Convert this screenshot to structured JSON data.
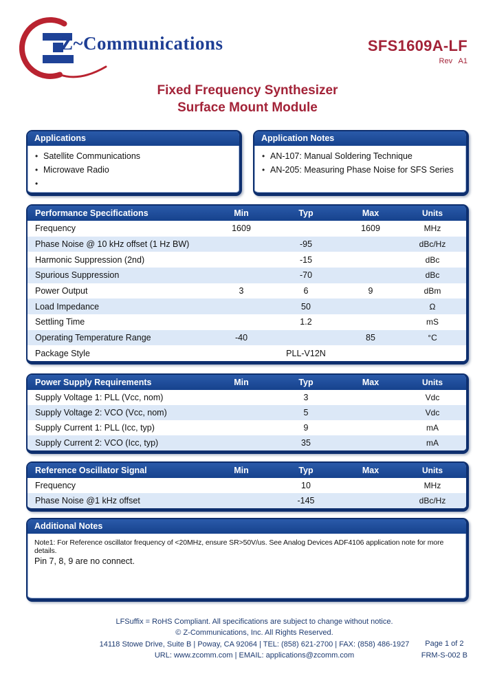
{
  "colors": {
    "navy_border": "#0e2f6e",
    "header_blue": "#1c4f9e",
    "alt_row_blue": "#dce8f7",
    "logo_red": "#b92330",
    "logo_blue": "#1e4297",
    "brand_blue": "#1e3e94",
    "title_red": "#a32338",
    "footer_navy": "#1d3a70"
  },
  "header": {
    "brand": "Z~Communications",
    "part_number": "SFS1609A-LF",
    "revision": "Rev A1"
  },
  "title": {
    "line1": "Fixed Frequency Synthesizer",
    "line2": "Surface Mount Module"
  },
  "applications": {
    "title": "Applications",
    "items": [
      "Satellite Communications",
      "Microwave Radio",
      ""
    ]
  },
  "application_notes": {
    "title": "Application Notes",
    "items": [
      "AN-107: Manual Soldering Technique",
      "AN-205: Measuring Phase Noise for SFS Series"
    ]
  },
  "tables": [
    {
      "title": "Performance Specifications",
      "columns": [
        "Min",
        "Typ",
        "Max",
        "Units"
      ],
      "rows": [
        {
          "name": "Frequency",
          "min": "1609",
          "typ": "",
          "max": "1609",
          "units": "MHz"
        },
        {
          "name": "Phase Noise @ 10 kHz offset (1 Hz BW)",
          "min": "",
          "typ": "-95",
          "max": "",
          "units": "dBc/Hz"
        },
        {
          "name": "Harmonic Suppression (2nd)",
          "min": "",
          "typ": "-15",
          "max": "",
          "units": "dBc"
        },
        {
          "name": "Spurious Suppression",
          "min": "",
          "typ": "-70",
          "max": "",
          "units": "dBc"
        },
        {
          "name": "Power Output",
          "min": "3",
          "typ": "6",
          "max": "9",
          "units": "dBm"
        },
        {
          "name": "Load Impedance",
          "min": "",
          "typ": "50",
          "max": "",
          "units": "Ω"
        },
        {
          "name": "Settling Time",
          "min": "",
          "typ": "1.2",
          "max": "",
          "units": "mS"
        },
        {
          "name": "Operating Temperature Range",
          "min": "-40",
          "typ": "",
          "max": "85",
          "units": "°C"
        },
        {
          "name": "Package Style",
          "min": "",
          "typ": "PLL-V12N",
          "max": "",
          "units": ""
        }
      ]
    },
    {
      "title": "Power Supply Requirements",
      "columns": [
        "Min",
        "Typ",
        "Max",
        "Units"
      ],
      "rows": [
        {
          "name": "Supply Voltage 1: PLL (Vcc, nom)",
          "min": "",
          "typ": "3",
          "max": "",
          "units": "Vdc"
        },
        {
          "name": "Supply Voltage 2: VCO (Vcc, nom)",
          "min": "",
          "typ": "5",
          "max": "",
          "units": "Vdc"
        },
        {
          "name": "Supply Current 1: PLL (Icc, typ)",
          "min": "",
          "typ": "9",
          "max": "",
          "units": "mA"
        },
        {
          "name": "Supply Current 2: VCO (Icc, typ)",
          "min": "",
          "typ": "35",
          "max": "",
          "units": "mA"
        }
      ]
    },
    {
      "title": "Reference Oscillator Signal",
      "columns": [
        "Min",
        "Typ",
        "Max",
        "Units"
      ],
      "rows": [
        {
          "name": "Frequency",
          "min": "",
          "typ": "10",
          "max": "",
          "units": "MHz"
        },
        {
          "name": "Phase Noise @1 kHz offset",
          "min": "",
          "typ": "-145",
          "max": "",
          "units": "dBc/Hz"
        }
      ]
    }
  ],
  "additional_notes": {
    "title": "Additional Notes",
    "lines": [
      "Note1: For Reference oscillator frequency of <20MHz, ensure SR>50V/us. See Analog Devices ADF4106 application note for more details.",
      "Pin 7, 8, 9 are no connect."
    ]
  },
  "footer": {
    "lines": [
      "LFSuffix = RoHS Compliant. All specifications are subject to change without notice.",
      "© Z-Communications, Inc. All Rights Reserved.",
      "14118 Stowe Drive, Suite B | Poway, CA 92064 | TEL: (858) 621-2700 | FAX: (858) 486-1927",
      "URL: www.zcomm.com | EMAIL: applications@zcomm.com"
    ],
    "page": "Page 1 of 2",
    "form": "FRM-S-002 B"
  }
}
